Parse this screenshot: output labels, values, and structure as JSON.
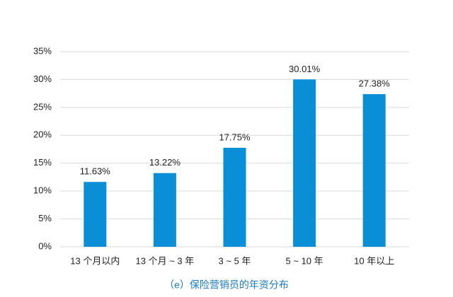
{
  "chart_data": {
    "type": "bar",
    "title": "（e）保险营销员的年资分布",
    "categories": [
      "13 个月以内",
      "13 个月 ~ 3 年",
      "3 ~ 5 年",
      "5 ~ 10 年",
      "10 年以上"
    ],
    "values": [
      11.63,
      13.22,
      17.75,
      30.01,
      27.38
    ],
    "value_labels": [
      "11.63%",
      "13.22%",
      "17.75%",
      "30.01%",
      "27.38%"
    ],
    "color": "#0a8fd6",
    "ylim": [
      0,
      35
    ],
    "yticks": [
      {
        "value": 0,
        "label": "0%"
      },
      {
        "value": 5,
        "label": "5%"
      },
      {
        "value": 10,
        "label": "10%"
      },
      {
        "value": 15,
        "label": "15%"
      },
      {
        "value": 20,
        "label": "20%"
      },
      {
        "value": 25,
        "label": "25%"
      },
      {
        "value": 30,
        "label": "30%"
      },
      {
        "value": 35,
        "label": "35%"
      }
    ],
    "grid": true
  }
}
